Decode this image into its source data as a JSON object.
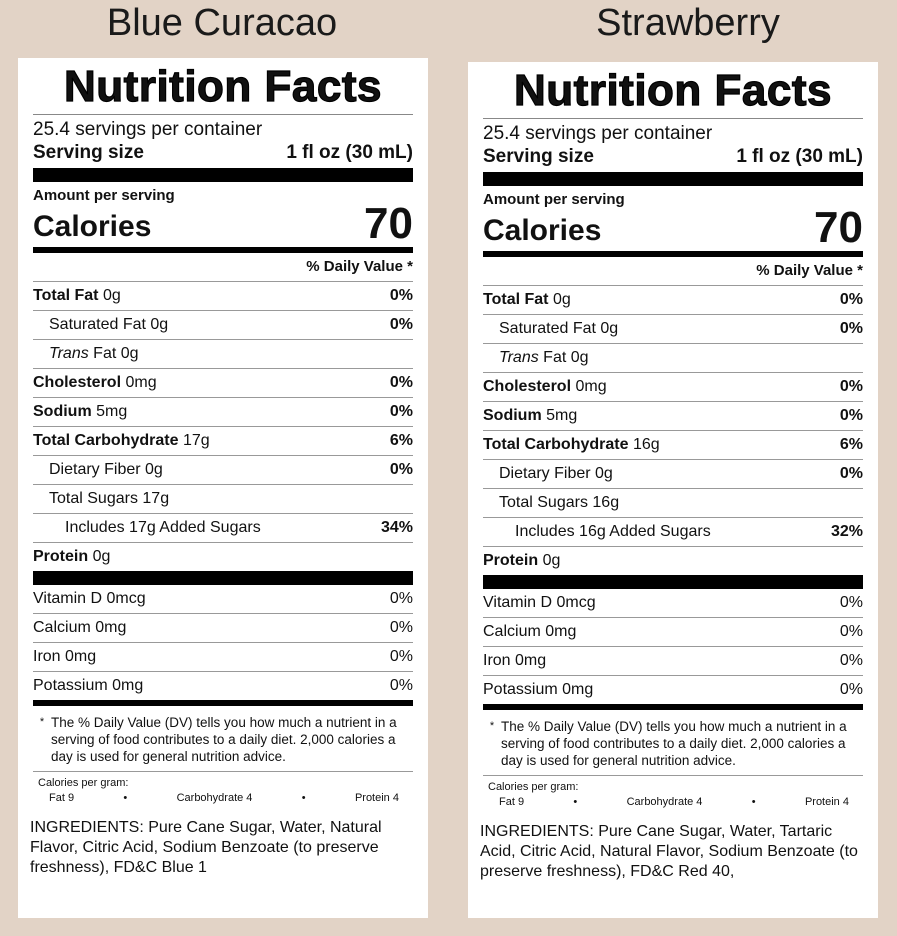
{
  "panels": [
    {
      "title": "Blue Curacao",
      "heading": "Nutrition Facts",
      "servings": "25.4 servings per container",
      "serving_size_label": "Serving size",
      "serving_size": "1 fl oz (30 mL)",
      "amount_per_serving": "Amount per serving",
      "calories_label": "Calories",
      "calories": "70",
      "daily_value_header": "% Daily Value *",
      "rows": [
        {
          "name": "Total Fat",
          "amount": "0g",
          "dv": "0%",
          "style": "bold",
          "indent": 0
        },
        {
          "name": "Saturated Fat",
          "amount": "0g",
          "dv": "0%",
          "style": "normal",
          "indent": 1
        },
        {
          "name": "Trans",
          "amount": "Fat 0g",
          "style": "italic",
          "indent": 1
        },
        {
          "name": "Cholesterol",
          "amount": "0mg",
          "dv": "0%",
          "style": "bold",
          "indent": 0
        },
        {
          "name": "Sodium",
          "amount": "5mg",
          "dv": "0%",
          "style": "bold",
          "indent": 0
        },
        {
          "name": "Total Carbohydrate",
          "amount": "17g",
          "dv": "6%",
          "style": "bold",
          "indent": 0
        },
        {
          "name": "Dietary Fiber",
          "amount": "0g",
          "dv": "0%",
          "style": "normal",
          "indent": 1
        },
        {
          "name": "Total Sugars",
          "amount": "17g",
          "style": "normal",
          "indent": 1
        },
        {
          "name": "Includes 17g Added Sugars",
          "dv": "34%",
          "style": "normal",
          "indent": 2
        },
        {
          "name": "Protein",
          "amount": "0g",
          "style": "bold",
          "indent": 0
        }
      ],
      "vitamins": [
        {
          "name": "Vitamin D 0mcg",
          "dv": "0%"
        },
        {
          "name": "Calcium 0mg",
          "dv": "0%"
        },
        {
          "name": "Iron 0mg",
          "dv": "0%"
        },
        {
          "name": "Potassium 0mg",
          "dv": "0%"
        }
      ],
      "footnote": "The % Daily Value (DV) tells you how much a nutrient in a serving of food contributes to a daily diet. 2,000 calories a day is used for general nutrition advice.",
      "calories_per_gram": "Calories per gram:",
      "per_gram": [
        "Fat 9",
        "Carbohydrate 4",
        "Protein 4"
      ],
      "ingredients": "INGREDIENTS: Pure Cane Sugar, Water, Natural Flavor, Citric Acid, Sodium Benzoate (to preserve freshness), FD&C Blue 1"
    },
    {
      "title": "Strawberry",
      "heading": "Nutrition Facts",
      "servings": "25.4 servings per container",
      "serving_size_label": "Serving size",
      "serving_size": "1 fl oz (30 mL)",
      "amount_per_serving": "Amount per serving",
      "calories_label": "Calories",
      "calories": "70",
      "daily_value_header": "% Daily Value *",
      "rows": [
        {
          "name": "Total Fat",
          "amount": "0g",
          "dv": "0%",
          "style": "bold",
          "indent": 0
        },
        {
          "name": "Saturated Fat",
          "amount": "0g",
          "dv": "0%",
          "style": "normal",
          "indent": 1
        },
        {
          "name": "Trans",
          "amount": "Fat 0g",
          "style": "italic",
          "indent": 1
        },
        {
          "name": "Cholesterol",
          "amount": "0mg",
          "dv": "0%",
          "style": "bold",
          "indent": 0
        },
        {
          "name": "Sodium",
          "amount": "5mg",
          "dv": "0%",
          "style": "bold",
          "indent": 0
        },
        {
          "name": "Total Carbohydrate",
          "amount": "16g",
          "dv": "6%",
          "style": "bold",
          "indent": 0
        },
        {
          "name": "Dietary Fiber",
          "amount": "0g",
          "dv": "0%",
          "style": "normal",
          "indent": 1
        },
        {
          "name": "Total Sugars",
          "amount": "16g",
          "style": "normal",
          "indent": 1
        },
        {
          "name": "Includes 16g Added Sugars",
          "dv": "32%",
          "style": "normal",
          "indent": 2
        },
        {
          "name": "Protein",
          "amount": "0g",
          "style": "bold",
          "indent": 0
        }
      ],
      "vitamins": [
        {
          "name": "Vitamin D 0mcg",
          "dv": "0%"
        },
        {
          "name": "Calcium 0mg",
          "dv": "0%"
        },
        {
          "name": "Iron 0mg",
          "dv": "0%"
        },
        {
          "name": "Potassium 0mg",
          "dv": "0%"
        }
      ],
      "footnote": "The % Daily Value (DV) tells you how much a nutrient in a serving of food contributes to a daily diet. 2,000 calories a day is used for general nutrition advice.",
      "calories_per_gram": "Calories per gram:",
      "per_gram": [
        "Fat 9",
        "Carbohydrate 4",
        "Protein 4"
      ],
      "ingredients": "INGREDIENTS: Pure Cane Sugar, Water, Tartaric Acid, Citric Acid, Natural Flavor, Sodium Benzoate (to preserve freshness), FD&C Red 40,"
    }
  ]
}
